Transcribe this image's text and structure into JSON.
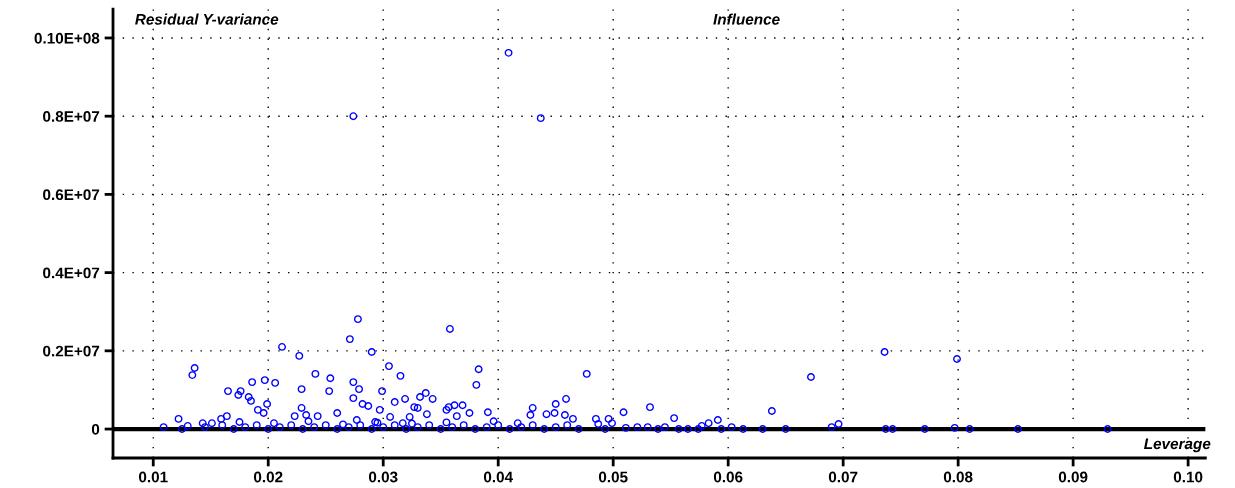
{
  "chart_data": {
    "type": "scatter",
    "title": "Influence",
    "xlabel": "Leverage",
    "ylabel": "Residual Y-variance",
    "xlim": [
      0.0065,
      0.1015
    ],
    "ylim": [
      -740000,
      10740000
    ],
    "xticks": [
      0.01,
      0.02,
      0.03,
      0.04,
      0.05,
      0.06,
      0.07,
      0.08,
      0.09,
      {
        "value": 0.1,
        "label": "0.10"
      }
    ],
    "yticks": [
      0,
      {
        "value": 2000000,
        "label": "0.2E+07"
      },
      {
        "value": 4000000,
        "label": "0.4E+07"
      },
      {
        "value": 6000000,
        "label": "0.6E+07"
      },
      {
        "value": 8000000,
        "label": "0.8E+07"
      },
      {
        "value": 10000000,
        "label": "0.10E+08"
      }
    ],
    "grid": true,
    "marker": "circle",
    "ref_lines": [
      {
        "axis": "y",
        "value": 0,
        "color": "#000000"
      }
    ],
    "series": [
      {
        "color": "#0000ff",
        "x": [
          0.0409,
          0.0274,
          0.0437,
          0.0278,
          0.0212,
          0.0227,
          0.0271,
          0.029,
          0.0358,
          0.0736,
          0.0799,
          0.0672,
          0.0477,
          0.0136,
          0.0134,
          0.0241,
          0.0254,
          0.0274,
          0.0229,
          0.0253,
          0.0274,
          0.0186,
          0.0197,
          0.0206,
          0.0165,
          0.0176,
          0.0174,
          0.0183,
          0.0185,
          0.0199,
          0.0191,
          0.0196,
          0.0122,
          0.0164,
          0.0159,
          0.0229,
          0.0233,
          0.026,
          0.0243,
          0.0223,
          0.0143,
          0.0151,
          0.0109,
          0.013,
          0.0305,
          0.0315,
          0.0279,
          0.0299,
          0.031,
          0.0319,
          0.0332,
          0.0337,
          0.0343,
          0.0383,
          0.0381,
          0.0327,
          0.033,
          0.0338,
          0.0355,
          0.0357,
          0.0362,
          0.0369,
          0.0375,
          0.0391,
          0.0396,
          0.0364,
          0.0297,
          0.0306,
          0.043,
          0.0428,
          0.0442,
          0.0449,
          0.0459,
          0.045,
          0.0458,
          0.0465,
          0.0485,
          0.0323,
          0.0287,
          0.0282,
          0.0277,
          0.0293,
          0.0417,
          0.0317,
          0.0487,
          0.0496,
          0.0509,
          0.0532,
          0.0553,
          0.0591,
          0.0583,
          0.0577,
          0.0603,
          0.0638,
          0.069,
          0.0696,
          0.0797,
          0.0737,
          0.0743,
          0.0771,
          0.081,
          0.0852,
          0.093,
          0.0499,
          0.0511,
          0.0521,
          0.053,
          0.0539,
          0.0545,
          0.0557,
          0.0565,
          0.0574,
          0.0594,
          0.0613,
          0.063,
          0.065,
          0.0493,
          0.0125,
          0.0145,
          0.016,
          0.017,
          0.018,
          0.019,
          0.02,
          0.021,
          0.022,
          0.023,
          0.024,
          0.025,
          0.026,
          0.027,
          0.028,
          0.029,
          0.03,
          0.031,
          0.032,
          0.033,
          0.034,
          0.035,
          0.036,
          0.037,
          0.038,
          0.039,
          0.04,
          0.041,
          0.042,
          0.043,
          0.044,
          0.045,
          0.046,
          0.047,
          0.0175,
          0.0205,
          0.0235,
          0.0265,
          0.0295,
          0.0325,
          0.0355
        ],
        "values": [
          9620000,
          8000000,
          7950000,
          2810000,
          2100000,
          1870000,
          2300000,
          1970000,
          2560000,
          1970000,
          1790000,
          1330000,
          1410000,
          1560000,
          1380000,
          1410000,
          1300000,
          1200000,
          1020000,
          970000,
          790000,
          1200000,
          1250000,
          1180000,
          970000,
          970000,
          870000,
          820000,
          720000,
          640000,
          490000,
          410000,
          260000,
          330000,
          260000,
          540000,
          360000,
          410000,
          330000,
          330000,
          150000,
          150000,
          50000,
          80000,
          1610000,
          1360000,
          1020000,
          970000,
          690000,
          770000,
          820000,
          920000,
          770000,
          1530000,
          1130000,
          560000,
          540000,
          380000,
          490000,
          560000,
          610000,
          610000,
          410000,
          430000,
          200000,
          330000,
          490000,
          310000,
          540000,
          360000,
          380000,
          410000,
          770000,
          640000,
          360000,
          260000,
          260000,
          310000,
          590000,
          640000,
          230000,
          180000,
          150000,
          150000,
          130000,
          260000,
          430000,
          560000,
          280000,
          230000,
          150000,
          80000,
          50000,
          460000,
          50000,
          130000,
          30000,
          0,
          0,
          0,
          0,
          0,
          0,
          150000,
          30000,
          50000,
          50000,
          0,
          50000,
          0,
          0,
          0,
          0,
          0,
          0,
          0,
          0,
          0,
          50000,
          100000,
          0,
          50000,
          100000,
          0,
          50000,
          100000,
          0,
          50000,
          100000,
          0,
          50000,
          100000,
          0,
          50000,
          100000,
          0,
          50000,
          100000,
          0,
          50000,
          100000,
          0,
          50000,
          100000,
          0,
          50000,
          100000,
          0,
          50000,
          100000,
          0,
          180000,
          150000,
          200000,
          120000,
          160000,
          140000,
          170000
        ]
      }
    ]
  }
}
